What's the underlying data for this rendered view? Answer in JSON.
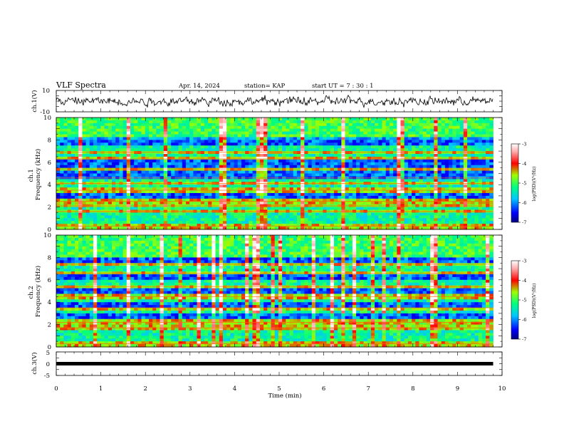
{
  "header": {
    "title": "VLF Spectra",
    "date": "Apr. 14, 2024",
    "station": "station= KAP",
    "start": "start UT = 7 : 30 : 1"
  },
  "chart_data": [
    {
      "type": "line",
      "panel": "ch1_waveform",
      "ylabel": "ch.1(V)",
      "ylim": [
        -10,
        10
      ],
      "yticks": [
        10,
        -10
      ],
      "xlim": [
        0,
        10
      ],
      "x_data_end": 9.8,
      "description_values": "continuous noisy waveform roughly between -6 and 6 V"
    },
    {
      "type": "heatmap",
      "panel": "ch1_spectrogram",
      "ylabel": "ch.1 Frequency (kHz)",
      "ylim": [
        0,
        10
      ],
      "yticks": [
        "0",
        "2",
        "4",
        "6",
        "8",
        "10"
      ],
      "xlim": [
        0,
        10
      ],
      "x_data_end": 9.8,
      "colorbar": {
        "label": "log(PSD)(V²/Hz)",
        "range": [
          -7,
          -3
        ],
        "ticks": [
          "-3",
          "-4",
          "-5",
          "-6",
          "-7"
        ]
      },
      "strong_bands_khz": [
        0.3,
        1.6,
        2.1,
        2.5,
        3.5,
        4.1,
        4.6,
        5.4,
        6.3,
        6.9
      ],
      "low_bands_khz": [
        3.0,
        4.9,
        5.9,
        7.9
      ]
    },
    {
      "type": "heatmap",
      "panel": "ch2_spectrogram",
      "ylabel": "ch.2 Frequency (kHz)",
      "ylim": [
        0,
        10
      ],
      "yticks": [
        "0",
        "2",
        "4",
        "6",
        "8",
        "10"
      ],
      "xlim": [
        0,
        10
      ],
      "x_data_end": 9.8,
      "colorbar": {
        "label": "log(PSD)(V²/Hz)",
        "range": [
          -7,
          -3
        ],
        "ticks": [
          "-3",
          "-4",
          "-5",
          "-6",
          "-7"
        ]
      },
      "strong_bands_khz": [
        0.3,
        1.7,
        2.2,
        3.5,
        4.5,
        5.4,
        6.6,
        7.4
      ],
      "low_bands_khz": [
        2.7,
        3.8,
        5.0,
        6.2,
        7.8
      ]
    },
    {
      "type": "line",
      "panel": "ch3_waveform",
      "ylabel": "ch.3(V)",
      "ylim": [
        -5,
        5
      ],
      "yticks": [
        "5",
        "0",
        "-5"
      ],
      "xlim": [
        0,
        10
      ],
      "x_data_end": 9.8,
      "constant_value": 0
    }
  ],
  "xaxis": {
    "label": "Time (min)",
    "ticks": [
      "0",
      "1",
      "2",
      "3",
      "4",
      "5",
      "6",
      "7",
      "8",
      "9",
      "10"
    ]
  }
}
